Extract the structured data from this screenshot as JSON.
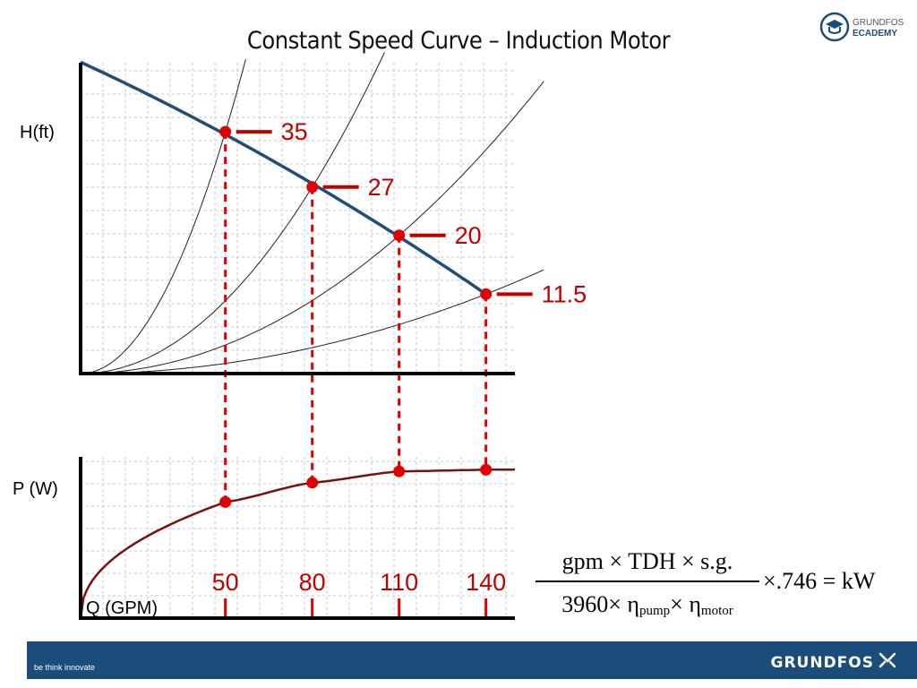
{
  "title": "Constant Speed Curve – Induction Motor",
  "academy_logo": {
    "line1": "GRUNDFOS",
    "line2": "ECADEMY",
    "icon": "graduation-cap-icon"
  },
  "footer": {
    "tagline": "be think innovate",
    "brand": "GRUNDFOS",
    "brand_icon": "grundfos-x-icon",
    "background": "#1b4d7b"
  },
  "formula": {
    "numerator": "gpm × TDH × s.g.",
    "denominator_prefix": "3960× η",
    "eta_pump_sub": "pump",
    "times_eta": "× η",
    "eta_motor_sub": "motor",
    "rest": "×.746 = kW"
  },
  "colors": {
    "pump_curve": "#1f4e79",
    "power_curve": "#7b1010",
    "marker": "#e00000",
    "annotation": "#c00000"
  },
  "chart_data": [
    {
      "type": "line",
      "title": "",
      "ylabel": "H(ft)",
      "xlabel": "",
      "grid": true,
      "xlim": [
        0,
        150
      ],
      "ylim": [
        0,
        45
      ],
      "series": [
        {
          "values": [
            [
              0,
              45
            ],
            [
              50,
              35
            ],
            [
              80,
              27
            ],
            [
              110,
              20
            ],
            [
              140,
              11.5
            ]
          ]
        }
      ],
      "system_curves": [
        {
          "through": [
            50,
            35
          ]
        },
        {
          "through": [
            80,
            27
          ]
        },
        {
          "through": [
            110,
            20
          ]
        },
        {
          "through": [
            140,
            11.5
          ]
        }
      ],
      "points": [
        {
          "x": 50,
          "y": 35,
          "label": "35"
        },
        {
          "x": 80,
          "y": 27,
          "label": "27"
        },
        {
          "x": 110,
          "y": 20,
          "label": "20"
        },
        {
          "x": 140,
          "y": 11.5,
          "label": "11.5"
        }
      ]
    },
    {
      "type": "line",
      "title": "",
      "ylabel": "P (W)",
      "xlabel": "Q (GPM)",
      "grid": true,
      "xlim": [
        0,
        150
      ],
      "ylim": [
        0,
        1
      ],
      "x_labels": [
        "50",
        "80",
        "110",
        "140"
      ],
      "x": [
        50,
        80,
        110,
        140
      ],
      "series": [
        {
          "values": [
            0.72,
            0.84,
            0.91,
            0.92
          ]
        }
      ]
    }
  ]
}
